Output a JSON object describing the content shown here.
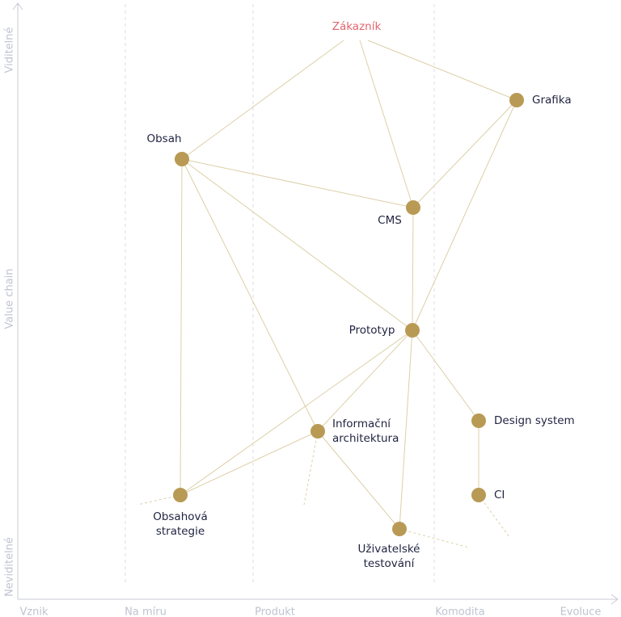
{
  "axes": {
    "y_top": "Viditelné",
    "y_middle": "Value chain",
    "y_bottom": "Neviditelné",
    "stages": [
      "Vznik",
      "Na míru",
      "Produkt",
      "Komodita",
      "Evoluce"
    ]
  },
  "nodes": [
    {
      "lines": [
        "Zákazník"
      ]
    },
    {
      "lines": [
        "Grafika"
      ]
    },
    {
      "lines": [
        "Obsah"
      ]
    },
    {
      "lines": [
        "CMS"
      ]
    },
    {
      "lines": [
        "Prototyp"
      ]
    },
    {
      "lines": [
        "Informační",
        "architektura"
      ]
    },
    {
      "lines": [
        "Design system"
      ]
    },
    {
      "lines": [
        "CI"
      ]
    },
    {
      "lines": [
        "Obsahová",
        "strategie"
      ]
    },
    {
      "lines": [
        "Uživatelské",
        "testování"
      ]
    }
  ]
}
